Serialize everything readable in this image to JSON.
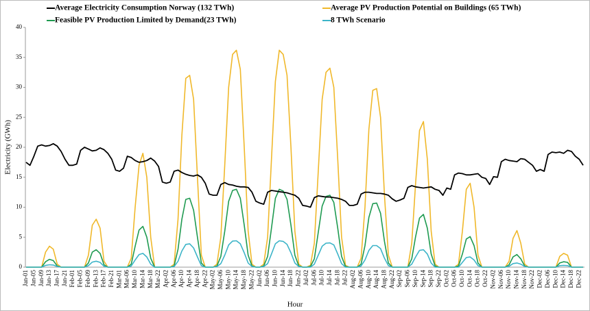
{
  "chart_data": {
    "type": "line",
    "ylabel": "Electricity (GWh)",
    "xlabel": "Hour",
    "ylim": [
      0,
      40
    ],
    "yticks": [
      0,
      5,
      10,
      15,
      20,
      25,
      30,
      35,
      40
    ],
    "categories": [
      "Jan-01",
      null,
      "Jan-05",
      null,
      "Jan-09",
      null,
      "Jan-13",
      null,
      "Jan-17",
      null,
      "Jan-21",
      null,
      "Feb-01",
      null,
      "Feb-05",
      null,
      "Feb-09",
      null,
      "Feb-13",
      null,
      "Feb-17",
      null,
      "Feb-21",
      null,
      "Mar-01",
      null,
      "Mar-06",
      null,
      "Mar-10",
      null,
      "Mar-14",
      null,
      "Mar-18",
      null,
      "Mar-22",
      null,
      "Apr-02",
      null,
      "Apr-06",
      null,
      "Apr-10",
      null,
      "Apr-14",
      null,
      "Apr-18",
      null,
      "Apr-22",
      null,
      "May-02",
      null,
      "May-06",
      null,
      "May-10",
      null,
      "May-14",
      null,
      "May-18",
      null,
      "May-22",
      null,
      "Jun-02",
      null,
      "Jun-06",
      null,
      "Jun-10",
      null,
      "Jun-14",
      null,
      "Jun-18",
      null,
      "Jun-22",
      null,
      "Jul-02",
      null,
      "Jul-06",
      null,
      "Jul-10",
      null,
      "Jul-14",
      null,
      "Jul-18",
      null,
      "Jul-22",
      null,
      "Aug-02",
      null,
      "Aug-06",
      null,
      "Aug-10",
      null,
      "Aug-14",
      null,
      "Aug-18",
      null,
      "Aug-22",
      null,
      "Sep-02",
      null,
      "Sep-06",
      null,
      "Sep-10",
      null,
      "Sep-14",
      null,
      "Sep-18",
      null,
      "Sep-22",
      null,
      "Oct-02",
      null,
      "Oct-06",
      null,
      "Oct-10",
      null,
      "Oct-14",
      null,
      "Oct-18",
      null,
      "Oct-22",
      null,
      "Nov-02",
      null,
      "Nov-06",
      null,
      "Nov-10",
      null,
      "Nov-14",
      null,
      "Nov-18",
      null,
      "Nov-22",
      null,
      "Dec-02",
      null,
      "Dec-06",
      null,
      "Dec-10",
      null,
      "Dec-14",
      null,
      "Dec-18",
      null,
      "Dec-22",
      null
    ],
    "series": [
      {
        "name": "Average Electricity Consumption Norway (132 TWh)",
        "color": "#000000",
        "values": [
          17.5,
          17.0,
          18.5,
          20.2,
          20.4,
          20.2,
          20.3,
          20.6,
          20.2,
          19.3,
          18.0,
          17.0,
          17.0,
          17.2,
          19.5,
          20.0,
          19.7,
          19.4,
          19.5,
          19.9,
          19.6,
          19.0,
          18.0,
          16.2,
          16.0,
          16.5,
          18.5,
          18.3,
          17.8,
          17.5,
          17.6,
          17.8,
          18.2,
          17.7,
          16.8,
          14.2,
          14.0,
          14.2,
          16.0,
          16.2,
          15.8,
          15.5,
          15.3,
          15.2,
          15.4,
          15.0,
          14.0,
          12.2,
          12.0,
          12.0,
          13.8,
          14.1,
          13.8,
          13.7,
          13.5,
          13.4,
          13.4,
          13.3,
          12.5,
          11.0,
          10.7,
          10.5,
          12.5,
          12.8,
          12.7,
          12.6,
          12.5,
          12.4,
          12.2,
          12.0,
          11.5,
          10.3,
          10.2,
          10.0,
          11.6,
          11.9,
          11.8,
          11.7,
          11.7,
          11.6,
          11.5,
          11.3,
          11.0,
          10.3,
          10.3,
          10.5,
          12.2,
          12.5,
          12.5,
          12.4,
          12.3,
          12.3,
          12.2,
          12.0,
          11.4,
          11.0,
          11.2,
          11.5,
          13.3,
          13.6,
          13.4,
          13.3,
          13.2,
          13.3,
          13.4,
          13.0,
          12.8,
          12.0,
          13.2,
          13.0,
          15.4,
          15.7,
          15.6,
          15.4,
          15.4,
          15.5,
          15.6,
          15.0,
          14.8,
          13.8,
          15.1,
          15.0,
          17.6,
          18.0,
          17.8,
          17.7,
          17.6,
          18.1,
          18.0,
          17.5,
          17.0,
          16.0,
          16.3,
          16.0,
          18.8,
          19.2,
          19.1,
          19.2,
          19.0,
          19.5,
          19.3,
          18.5,
          18.0,
          17.0
        ]
      },
      {
        "name": "Average PV Production Potential on Buildings (65 TWh)",
        "color": "#f0b82a",
        "values": [
          0,
          0,
          0,
          0,
          0,
          2.5,
          3.5,
          3.0,
          0.5,
          0,
          0,
          0,
          0,
          0,
          0,
          0,
          2.0,
          7.0,
          8.0,
          6.5,
          1.0,
          0,
          0,
          0,
          0,
          0,
          0,
          1.5,
          10,
          17,
          19,
          15,
          5,
          0,
          0,
          0,
          0,
          0,
          0.5,
          8,
          22,
          31.5,
          32,
          28,
          15,
          2,
          0,
          0,
          0,
          0.5,
          5,
          17,
          30,
          35.5,
          36.2,
          33,
          20,
          6,
          0.5,
          0,
          0,
          0.5,
          5,
          18,
          31,
          36.2,
          35.5,
          32,
          20,
          6,
          0.5,
          0,
          0,
          0.3,
          4,
          16,
          28,
          32.5,
          33.2,
          30,
          18,
          5,
          0.3,
          0,
          0,
          0,
          1.5,
          10,
          23,
          29.5,
          29.8,
          25,
          12,
          2,
          0,
          0,
          0,
          0,
          0,
          4,
          14,
          22.8,
          24.3,
          18,
          6,
          0.5,
          0,
          0,
          0,
          0,
          0,
          0.5,
          6,
          13,
          14,
          10,
          2,
          0,
          0,
          0,
          0,
          0,
          0,
          0,
          1,
          4.8,
          6.1,
          4,
          0.5,
          0,
          0,
          0,
          0,
          0,
          0,
          0,
          0,
          1.8,
          2.3,
          2.0,
          0,
          0,
          0,
          0
        ]
      },
      {
        "name": "Feasible PV Production Limited by Demand(23 TWh)",
        "color": "#1e9a50",
        "values": [
          0,
          0,
          0,
          0,
          0,
          0.9,
          1.3,
          1.1,
          0.2,
          0,
          0,
          0,
          0,
          0,
          0,
          0,
          0.7,
          2.5,
          2.9,
          2.3,
          0.4,
          0,
          0,
          0,
          0,
          0,
          0,
          0.5,
          3.5,
          6.2,
          6.8,
          5.0,
          1.5,
          0,
          0,
          0,
          0,
          0,
          0.2,
          3,
          8,
          11.3,
          11.5,
          9.5,
          5,
          0.7,
          0,
          0,
          0,
          0.2,
          1.8,
          6,
          11,
          12.8,
          13,
          11.5,
          7,
          2,
          0.2,
          0,
          0,
          0.2,
          1.8,
          6.5,
          11.5,
          13,
          12.7,
          11.3,
          7,
          2,
          0.2,
          0,
          0,
          0.1,
          1.4,
          5.8,
          10.2,
          11.8,
          12,
          10.8,
          6.5,
          1.8,
          0.1,
          0,
          0,
          0,
          0.5,
          3.6,
          8.3,
          10.6,
          10.7,
          9,
          4.3,
          0.7,
          0,
          0,
          0,
          0,
          0,
          1.4,
          5.1,
          8.2,
          8.8,
          6.5,
          2.2,
          0.2,
          0,
          0,
          0,
          0,
          0,
          0.2,
          2.2,
          4.7,
          5.1,
          3.6,
          0.7,
          0,
          0,
          0,
          0,
          0,
          0,
          0,
          0.4,
          1.7,
          2.1,
          1.4,
          0.2,
          0,
          0,
          0,
          0,
          0,
          0,
          0,
          0,
          0.7,
          0.9,
          0.8,
          0,
          0,
          0,
          0
        ]
      },
      {
        "name": "8 TWh Scenario",
        "color": "#3cb4c8",
        "values": [
          0,
          0,
          0,
          0,
          0,
          0.3,
          0.4,
          0.35,
          0.1,
          0,
          0,
          0,
          0,
          0,
          0,
          0,
          0.25,
          0.85,
          1.0,
          0.8,
          0.15,
          0,
          0,
          0,
          0,
          0,
          0,
          0.2,
          1.2,
          2.1,
          2.3,
          1.7,
          0.5,
          0,
          0,
          0,
          0,
          0,
          0.1,
          1,
          2.7,
          3.8,
          3.9,
          3.2,
          1.7,
          0.25,
          0,
          0,
          0,
          0.1,
          0.6,
          2,
          3.7,
          4.35,
          4.4,
          3.9,
          2.4,
          0.7,
          0.1,
          0,
          0,
          0.1,
          0.6,
          2.2,
          3.9,
          4.4,
          4.3,
          3.8,
          2.4,
          0.7,
          0.1,
          0,
          0,
          0,
          0.5,
          2,
          3.5,
          4,
          4.05,
          3.7,
          2.2,
          0.6,
          0,
          0,
          0,
          0,
          0.2,
          1.2,
          2.8,
          3.6,
          3.6,
          3.1,
          1.5,
          0.25,
          0,
          0,
          0,
          0,
          0,
          0.5,
          1.7,
          2.8,
          2.9,
          2.2,
          0.7,
          0,
          0,
          0,
          0,
          0,
          0,
          0,
          0.8,
          1.6,
          1.7,
          1.2,
          0.25,
          0,
          0,
          0,
          0,
          0,
          0,
          0,
          0.15,
          0.6,
          0.7,
          0.5,
          0.1,
          0,
          0,
          0,
          0,
          0,
          0,
          0,
          0,
          0.25,
          0.3,
          0.25,
          0,
          0,
          0,
          0
        ]
      }
    ]
  }
}
